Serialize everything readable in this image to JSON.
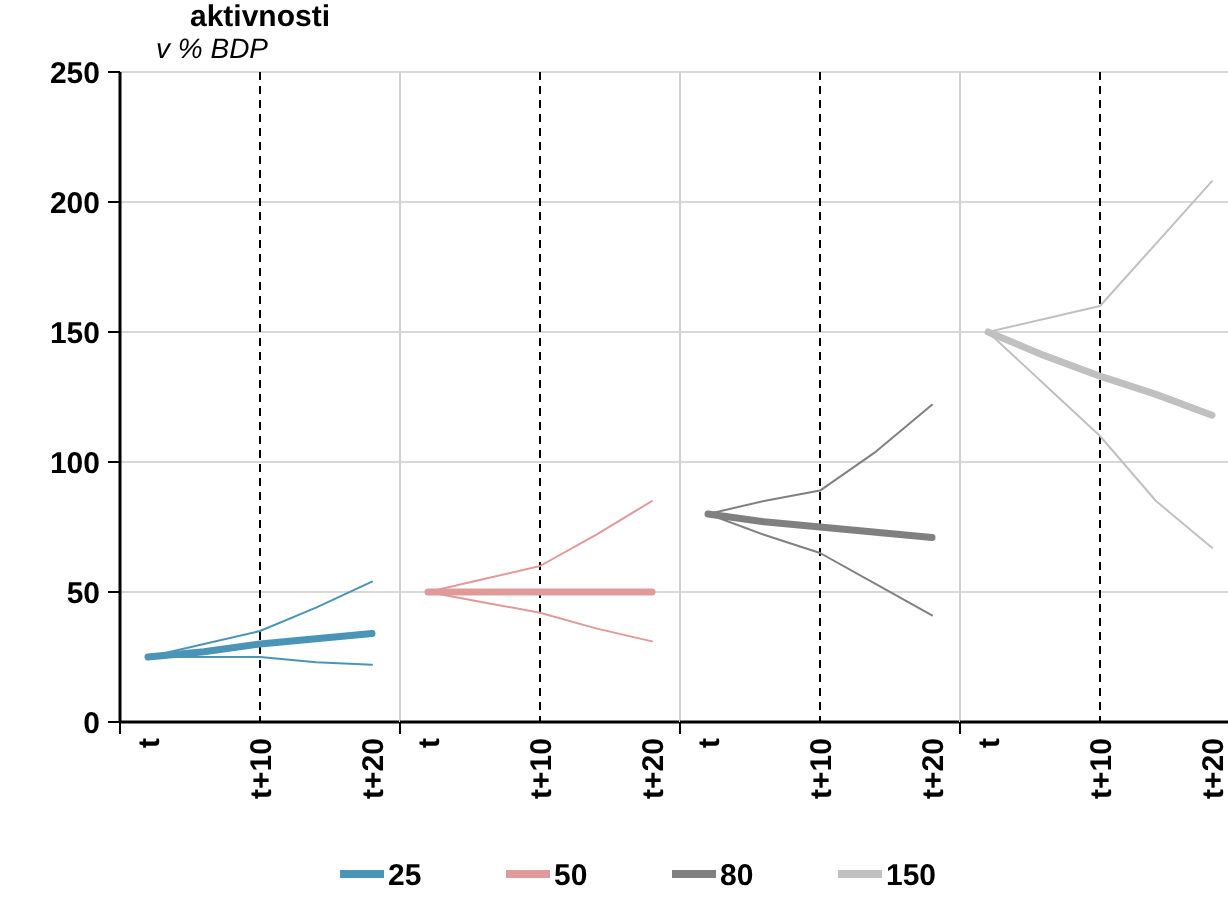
{
  "chart_data": [
    {
      "type": "line",
      "title": "aktivnosti",
      "ylabel": "v % BDP",
      "categories": [
        "t",
        null,
        "t+10",
        null,
        "t+20"
      ],
      "ylim": [
        0,
        250
      ],
      "yticks": [
        0,
        50,
        100,
        150,
        200,
        250
      ],
      "grid": "y",
      "legend": "bottom",
      "marker": "none",
      "line_style": "solid",
      "ref_lines": [
        {
          "axis": "x",
          "value": "t+10",
          "color": "#000000",
          "line_style": "dashed"
        }
      ],
      "series": [
        {
          "color": "#4a94b8",
          "values": [
            25,
            30,
            35,
            44,
            54
          ]
        },
        {
          "color": "#4a94b8",
          "values": [
            25,
            25,
            25,
            23,
            22
          ]
        },
        {
          "name": "25",
          "color": "#4a94b8",
          "values": [
            25,
            27,
            30,
            32,
            34
          ]
        }
      ]
    },
    {
      "type": "line",
      "categories": [
        "t",
        null,
        "t+10",
        null,
        "t+20"
      ],
      "ylim": [
        0,
        250
      ],
      "yticks": [
        0,
        50,
        100,
        150,
        200,
        250
      ],
      "tick_labels": "x",
      "grid": "y",
      "legend": "bottom",
      "marker": "none",
      "line_style": "solid",
      "ref_lines": [
        {
          "axis": "x",
          "value": "t+10",
          "color": "#000000",
          "line_style": "dashed"
        }
      ],
      "series": [
        {
          "color": "#e09a9a",
          "values": [
            50,
            55,
            60,
            72,
            85
          ]
        },
        {
          "color": "#e09a9a",
          "values": [
            50,
            46,
            42,
            36,
            31
          ]
        },
        {
          "name": "50",
          "color": "#e09a9a",
          "values": [
            50,
            50,
            50,
            50,
            50
          ]
        }
      ]
    },
    {
      "type": "line",
      "categories": [
        "t",
        null,
        "t+10",
        null,
        "t+20"
      ],
      "ylim": [
        0,
        250
      ],
      "yticks": [
        0,
        50,
        100,
        150,
        200,
        250
      ],
      "tick_labels": "x",
      "grid": "y",
      "legend": "bottom",
      "marker": "none",
      "line_style": "solid",
      "ref_lines": [
        {
          "axis": "x",
          "value": "t+10",
          "color": "#000000",
          "line_style": "dashed"
        }
      ],
      "series": [
        {
          "color": "#808080",
          "values": [
            80,
            85,
            89,
            104,
            122
          ]
        },
        {
          "color": "#808080",
          "values": [
            80,
            72,
            65,
            53,
            41
          ]
        },
        {
          "name": "80",
          "color": "#808080",
          "values": [
            80,
            77,
            75,
            73,
            71
          ]
        }
      ]
    },
    {
      "type": "line",
      "categories": [
        "t",
        null,
        "t+10",
        null,
        "t+20"
      ],
      "ylim": [
        0,
        250
      ],
      "yticks": [
        0,
        50,
        100,
        150,
        200,
        250
      ],
      "tick_labels": "x",
      "grid": "y",
      "legend": "bottom",
      "marker": "none",
      "line_style": "solid",
      "ref_lines": [
        {
          "axis": "x",
          "value": "t+10",
          "color": "#000000",
          "line_style": "dashed"
        }
      ],
      "series": [
        {
          "color": "#c0c0c0",
          "values": [
            150,
            155,
            160,
            184,
            208
          ]
        },
        {
          "color": "#c0c0c0",
          "values": [
            150,
            130,
            110,
            85,
            67
          ]
        },
        {
          "name": "150",
          "color": "#c0c0c0",
          "values": [
            150,
            141,
            133,
            126,
            118
          ]
        }
      ]
    }
  ]
}
